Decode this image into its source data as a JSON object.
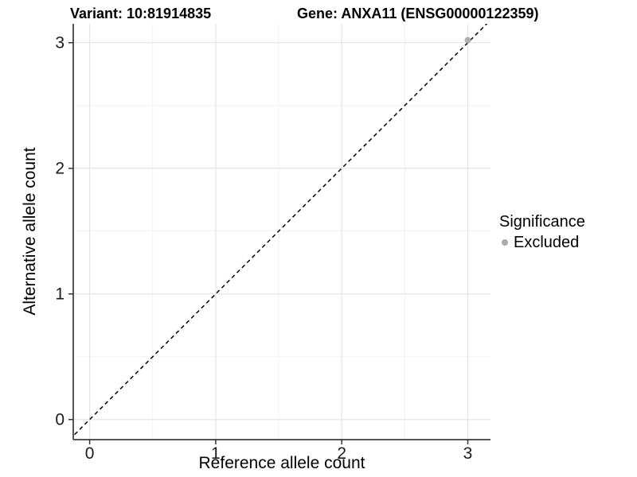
{
  "titles": {
    "variant": "Variant: 10:81914835",
    "gene": "Gene: ANXA11 (ENSG00000122359)"
  },
  "chart_data": {
    "type": "scatter",
    "title_left": "Variant: 10:81914835",
    "title_right": "Gene: ANXA11 (ENSG00000122359)",
    "xlabel": "Reference allele count",
    "ylabel": "Alternative allele count",
    "xlim": [
      -0.13,
      3.18
    ],
    "ylim": [
      -0.16,
      3.15
    ],
    "x_ticks": [
      0,
      1,
      2,
      3
    ],
    "y_ticks": [
      0,
      1,
      2,
      3
    ],
    "x_minor_ticks": [
      0.5,
      1.5,
      2.5
    ],
    "y_minor_ticks": [
      0.5,
      1.5,
      2.5
    ],
    "grid": true,
    "identity_line": {
      "style": "dashed",
      "from": -0.2,
      "to": 3.3,
      "color": "#000000"
    },
    "points": [
      {
        "x": 3,
        "y": 3.02,
        "significance": "Excluded",
        "color": "#aaaaaa"
      }
    ],
    "legend": {
      "title": "Significance",
      "position": "right",
      "items": [
        {
          "label": "Excluded",
          "color": "#aaaaaa",
          "marker": "circle"
        }
      ]
    },
    "colors": {
      "background": "#ffffff",
      "grid_major": "#e4e4e4",
      "grid_minor": "#efefef",
      "axis_line": "#555555",
      "tick_mark": "#333333",
      "text": "#000000",
      "point": "#aaaaaa"
    }
  }
}
